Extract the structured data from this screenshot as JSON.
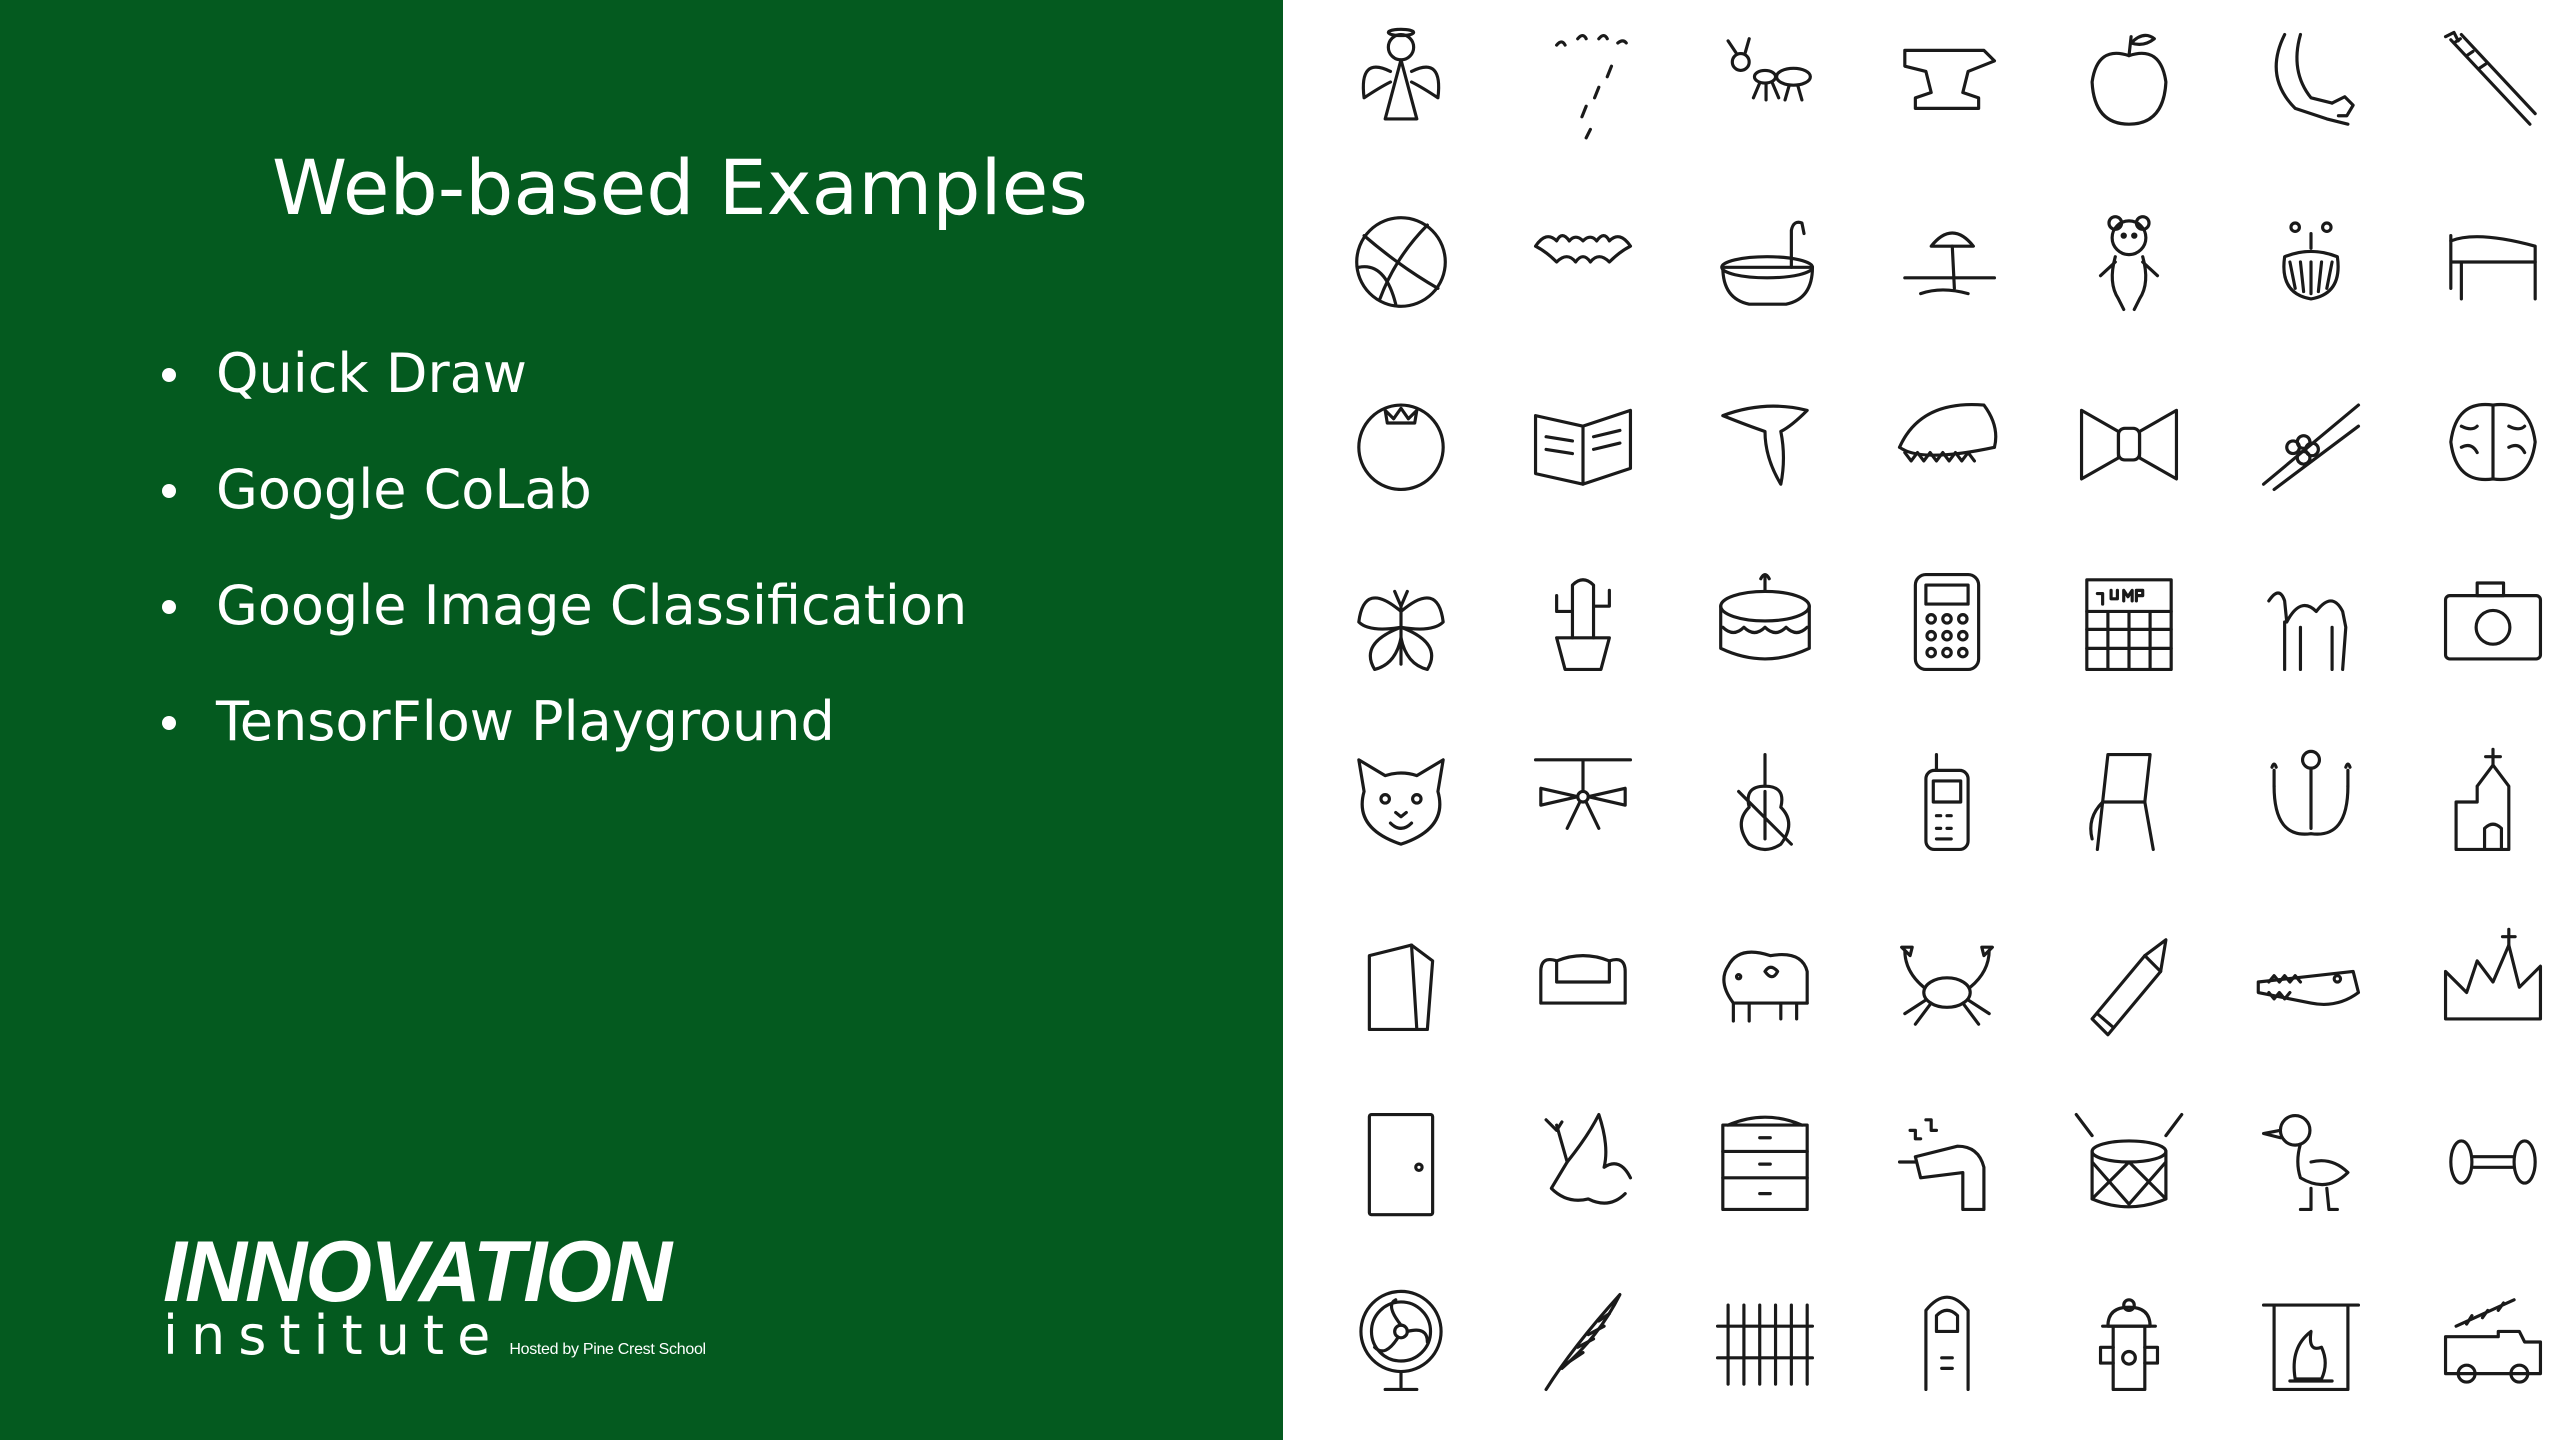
{
  "slide": {
    "title": "Web-based Examples",
    "bullets": [
      "Quick Draw",
      "Google CoLab",
      "Google Image Classification",
      "TensorFlow Playground"
    ]
  },
  "logo": {
    "name": "INNOVATION",
    "subtitle": "institute",
    "hosted_by": "Hosted by Pine Crest School"
  },
  "colors": {
    "panel_green": "#045a1f",
    "text_white": "#ffffff",
    "doodle_ink": "#1a1a1a"
  },
  "doodles": [
    "angel",
    "rain",
    "ant",
    "anvil",
    "apple",
    "arm",
    "asparagus",
    "basketball",
    "bat",
    "bathtub",
    "beach",
    "bear",
    "beard",
    "bed",
    "tomato",
    "book",
    "boomerang",
    "bread",
    "bowtie",
    "bracelet",
    "brain",
    "butterfly",
    "cactus",
    "cake",
    "calculator",
    "calendar",
    "camel",
    "camera",
    "cat",
    "ceiling-fan",
    "cello",
    "cell-phone",
    "chair",
    "chandelier",
    "church",
    "paper-bag",
    "couch",
    "cow",
    "crab",
    "crayon",
    "crocodile",
    "crown",
    "door",
    "dragon",
    "dresser",
    "drill",
    "drum",
    "duck",
    "dumbbell",
    "fan",
    "feather",
    "fence",
    "finger",
    "fire-hydrant",
    "fireplace",
    "firetruck"
  ]
}
